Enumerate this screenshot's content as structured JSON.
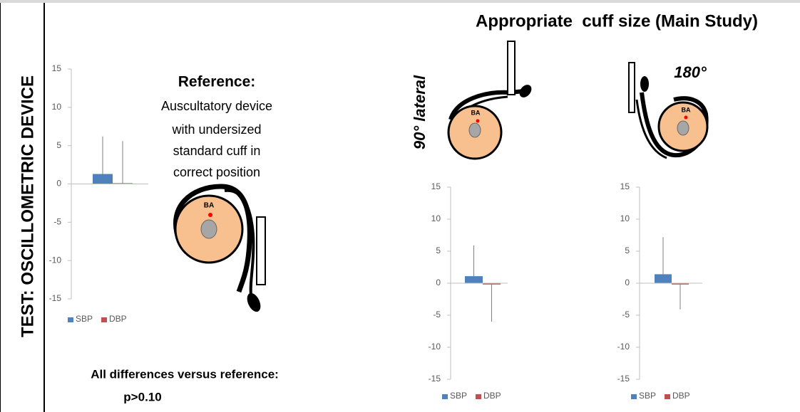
{
  "side_label": "TEST: OSCILLOMETRIC DEVICE",
  "main_title": "Appropriate  cuff size (Main Study)",
  "reference": {
    "title": "Reference:",
    "lines": [
      "Auscultatory device",
      "with undersized",
      "standard cuff in",
      "correct position"
    ]
  },
  "footnote": [
    "All differences versus reference:",
    "p>0.10"
  ],
  "positions": [
    "90° lateral",
    "180°"
  ],
  "artery_label": "BA",
  "chart_data": [
    {
      "type": "bar",
      "categories": [
        null
      ],
      "ylim": [
        -15,
        15
      ],
      "yticks": [
        -15,
        -10,
        -5,
        0,
        5,
        10,
        15
      ],
      "series": [
        {
          "name": "SBP",
          "color": "#4f81bd",
          "values": [
            1.3
          ],
          "errors": [
            4.9
          ]
        },
        {
          "name": "DBP",
          "color": "#c0504d",
          "values": [
            0.1
          ],
          "errors": [
            5.5
          ]
        }
      ]
    },
    {
      "type": "bar",
      "categories": [
        null
      ],
      "ylim": [
        -15,
        15
      ],
      "yticks": [
        -15,
        -10,
        -5,
        0,
        5,
        10,
        15
      ],
      "series": [
        {
          "name": "SBP",
          "color": "#4f81bd",
          "values": [
            1.1
          ],
          "errors": [
            4.8
          ]
        },
        {
          "name": "DBP",
          "color": "#c0504d",
          "values": [
            -0.2
          ],
          "errors": [
            5.8
          ]
        }
      ]
    },
    {
      "type": "bar",
      "categories": [
        null
      ],
      "ylim": [
        -15,
        15
      ],
      "yticks": [
        -15,
        -10,
        -5,
        0,
        5,
        10,
        15
      ],
      "series": [
        {
          "name": "SBP",
          "color": "#4f81bd",
          "values": [
            1.4
          ],
          "errors": [
            5.8
          ]
        },
        {
          "name": "DBP",
          "color": "#c0504d",
          "values": [
            -0.2
          ],
          "errors": [
            3.9
          ]
        }
      ]
    }
  ]
}
